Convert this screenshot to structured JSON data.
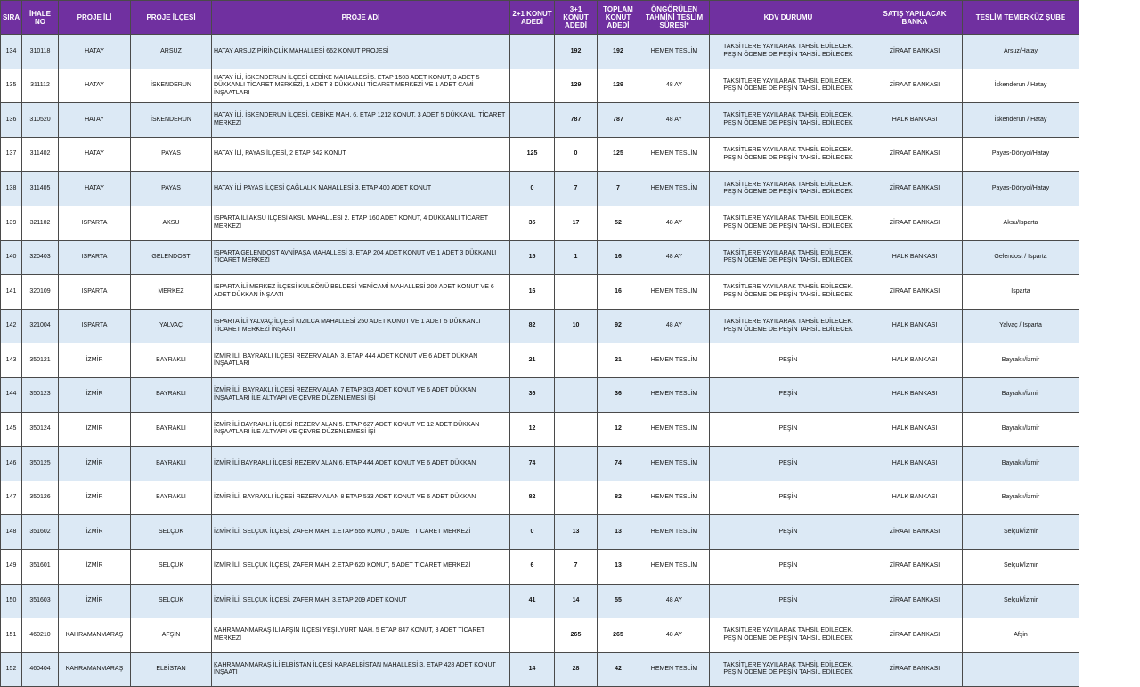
{
  "colors": {
    "header_bg": "#7030a0",
    "header_text": "#ffffff",
    "alt_row_bg": "#dce9f5",
    "border": "#4a4a4a"
  },
  "headers": {
    "sira": "SIRA",
    "ihale_no": "İHALE NO",
    "il": "PROJE İLİ",
    "ilce": "PROJE İLÇESİ",
    "adi": "PROJE ADI",
    "k21": "2+1 KONUT ADEDİ",
    "k31": "3+1 KONUT ADEDİ",
    "toplam": "TOPLAM KONUT ADEDİ",
    "sure": "ÖNGÖRÜLEN TAHMİNİ TESLİM SÜRESİ*",
    "kdv": "KDV DURUMU",
    "banka": "SATIŞ YAPILACAK BANKA",
    "sube": "TESLİM TEMERKÜZ ŞUBE"
  },
  "rows": [
    {
      "sira": "134",
      "ihale": "310118",
      "il": "HATAY",
      "ilce": "ARSUZ",
      "adi": "HATAY ARSUZ PİRİNÇLİK MAHALLESİ  662 KONUT PROJESİ",
      "k21": "",
      "k31": "192",
      "toplam": "192",
      "sure": "HEMEN TESLİM",
      "kdv": "TAKSİTLERE YAYILARAK TAHSİL EDİLECEK.\nPEŞİN ÖDEME DE PEŞİN TAHSİL EDİLECEK",
      "banka": "ZİRAAT BANKASI",
      "sube": "Arsuz/Hatay"
    },
    {
      "sira": "135",
      "ihale": "311112",
      "il": "HATAY",
      "ilce": "İSKENDERUN",
      "adi": "HATAY İLİ, İSKENDERUN İLÇESİ CEBİKE MAHALLESİ 5. ETAP 1503 ADET KONUT, 3 ADET 5 DÜKKANLI TİCARET MERKEZİ, 1 ADET 3 DÜKKANLI TİCARET MERKEZİ VE 1 ADET CAMİ İNŞAATLARI",
      "k21": "",
      "k31": "129",
      "toplam": "129",
      "sure": "48 AY",
      "kdv": "TAKSİTLERE YAYILARAK TAHSİL EDİLECEK.\nPEŞİN ÖDEME DE PEŞİN TAHSİL EDİLECEK",
      "banka": "ZİRAAT BANKASI",
      "sube": "İskenderun / Hatay"
    },
    {
      "sira": "136",
      "ihale": "310520",
      "il": "HATAY",
      "ilce": "İSKENDERUN",
      "adi": "HATAY İLİ, İSKENDERUN İLÇESİ, CEBİKE MAH. 6. ETAP 1212  KONUT, 3 ADET 5 DÜKKANLI TİCARET MERKEZİ",
      "k21": "",
      "k31": "787",
      "toplam": "787",
      "sure": "48 AY",
      "kdv": "TAKSİTLERE YAYILARAK TAHSİL EDİLECEK.\nPEŞİN ÖDEME DE PEŞİN TAHSİL EDİLECEK",
      "banka": "HALK BANKASI",
      "sube": "İskenderun / Hatay"
    },
    {
      "sira": "137",
      "ihale": "311402",
      "il": "HATAY",
      "ilce": "PAYAS",
      "adi": "HATAY İLİ, PAYAS İLÇESİ, 2 ETAP 542 KONUT",
      "k21": "125",
      "k31": "0",
      "toplam": "125",
      "sure": "HEMEN TESLİM",
      "kdv": "TAKSİTLERE YAYILARAK TAHSİL EDİLECEK.\nPEŞİN ÖDEME DE PEŞİN TAHSİL EDİLECEK",
      "banka": "ZİRAAT BANKASI",
      "sube": "Payas-Dörtyol/Hatay"
    },
    {
      "sira": "138",
      "ihale": "311405",
      "il": "HATAY",
      "ilce": "PAYAS",
      "adi": "HATAY İLİ PAYAS İLÇESİ ÇAĞLALIK MAHALLESİ 3. ETAP 400 ADET KONUT",
      "k21": "0",
      "k31": "7",
      "toplam": "7",
      "sure": "HEMEN TESLİM",
      "kdv": "TAKSİTLERE YAYILARAK TAHSİL EDİLECEK.\nPEŞİN ÖDEME DE PEŞİN TAHSİL EDİLECEK",
      "banka": "ZİRAAT BANKASI",
      "sube": "Payas-Dörtyol/Hatay"
    },
    {
      "sira": "139",
      "ihale": "321102",
      "il": "ISPARTA",
      "ilce": "AKSU",
      "adi": "ISPARTA İLİ AKSU İLÇESİ AKSU MAHALLESİ 2. ETAP 160 ADET KONUT, 4 DÜKKANLI TİCARET MERKEZİ",
      "k21": "35",
      "k31": "17",
      "toplam": "52",
      "sure": "48 AY",
      "kdv": "TAKSİTLERE YAYILARAK TAHSİL EDİLECEK.\nPEŞİN ÖDEME DE PEŞİN TAHSİL EDİLECEK",
      "banka": "ZİRAAT BANKASI",
      "sube": "Aksu/Isparta"
    },
    {
      "sira": "140",
      "ihale": "320403",
      "il": "ISPARTA",
      "ilce": "GELENDOST",
      "adi": "ISPARTA GELENDOST AVNİPAŞA MAHALLESİ 3. ETAP 204 ADET KONUT VE 1 ADET 3 DÜKKANLI TİCARET MERKEZİ",
      "k21": "15",
      "k31": "1",
      "toplam": "16",
      "sure": "48 AY",
      "kdv": "TAKSİTLERE YAYILARAK TAHSİL EDİLECEK.\nPEŞİN ÖDEME DE PEŞİN TAHSİL EDİLECEK",
      "banka": "HALK BANKASI",
      "sube": "Gelendost / Isparta"
    },
    {
      "sira": "141",
      "ihale": "320109",
      "il": "ISPARTA",
      "ilce": "MERKEZ",
      "adi": "ISPARTA İLİ MERKEZ İLÇESİ KULEÖNÜ BELDESİ YENİCAMİ MAHALLESİ 200 ADET KONUT VE 6 ADET DÜKKAN İNŞAATI",
      "k21": "16",
      "k31": "",
      "toplam": "16",
      "sure": "HEMEN TESLİM",
      "kdv": "TAKSİTLERE YAYILARAK TAHSİL EDİLECEK.\nPEŞİN ÖDEME DE PEŞİN TAHSİL EDİLECEK",
      "banka": "ZİRAAT BANKASI",
      "sube": "Isparta"
    },
    {
      "sira": "142",
      "ihale": "321004",
      "il": "ISPARTA",
      "ilce": "YALVAÇ",
      "adi": "ISPARTA İLİ YALVAÇ İLÇESİ KIZILCA MAHALLESİ 250 ADET KONUT VE 1 ADET 5 DÜKKANLI TİCARET MERKEZİ İNŞAATI",
      "k21": "82",
      "k31": "10",
      "toplam": "92",
      "sure": "48 AY",
      "kdv": "TAKSİTLERE YAYILARAK TAHSİL EDİLECEK.\nPEŞİN ÖDEME DE PEŞİN TAHSİL EDİLECEK",
      "banka": "HALK BANKASI",
      "sube": "Yalvaç / Isparta"
    },
    {
      "sira": "143",
      "ihale": "350121",
      "il": "İZMİR",
      "ilce": "BAYRAKLI",
      "adi": "İZMİR İLİ, BAYRAKLI İLÇESİ REZERV ALAN 3. ETAP 444 ADET KONUT VE 6 ADET DÜKKAN İNŞAATLARI",
      "k21": "21",
      "k31": "",
      "toplam": "21",
      "sure": "HEMEN TESLİM",
      "kdv": "PEŞİN",
      "banka": "HALK BANKASI",
      "sube": "Bayraklı/İzmir"
    },
    {
      "sira": "144",
      "ihale": "350123",
      "il": "İZMİR",
      "ilce": "BAYRAKLI",
      "adi": "İZMİR İLİ, BAYRAKLI İLÇESİ REZERV ALAN 7 ETAP 303 ADET KONUT VE 6 ADET DÜKKAN İNŞAATLARI İLE ALTYAPI VE ÇEVRE DÜZENLEMESİ İŞİ",
      "k21": "36",
      "k31": "",
      "toplam": "36",
      "sure": "HEMEN TESLİM",
      "kdv": "PEŞİN",
      "banka": "HALK BANKASI",
      "sube": "Bayraklı/İzmir"
    },
    {
      "sira": "145",
      "ihale": "350124",
      "il": "İZMİR",
      "ilce": "BAYRAKLI",
      "adi": "İZMİR İLİ BAYRAKLI İLÇESİ REZERV ALAN 5. ETAP 627 ADET KONUT VE 12 ADET DÜKKAN İNŞAATLARI İLE ALTYAPI VE ÇEVRE DÜZENLEMESİ İŞİ",
      "k21": "12",
      "k31": "",
      "toplam": "12",
      "sure": "HEMEN TESLİM",
      "kdv": "PEŞİN",
      "banka": "HALK BANKASI",
      "sube": "Bayraklı/İzmir"
    },
    {
      "sira": "146",
      "ihale": "350125",
      "il": "İZMİR",
      "ilce": "BAYRAKLI",
      "adi": "İZMİR İLİ BAYRAKLI İLÇESİ REZERV ALAN 6. ETAP 444 ADET KONUT VE 6 ADET DÜKKAN",
      "k21": "74",
      "k31": "",
      "toplam": "74",
      "sure": "HEMEN TESLİM",
      "kdv": "PEŞİN",
      "banka": "HALK BANKASI",
      "sube": "Bayraklı/İzmir"
    },
    {
      "sira": "147",
      "ihale": "350126",
      "il": "İZMİR",
      "ilce": "BAYRAKLI",
      "adi": "İZMİR İLİ, BAYRAKLI İLÇESİ REZERV ALAN 8 ETAP 533 ADET KONUT VE 6 ADET DÜKKAN",
      "k21": "82",
      "k31": "",
      "toplam": "82",
      "sure": "HEMEN TESLİM",
      "kdv": "PEŞİN",
      "banka": "HALK BANKASI",
      "sube": "Bayraklı/İzmir"
    },
    {
      "sira": "148",
      "ihale": "351602",
      "il": "İZMİR",
      "ilce": "SELÇUK",
      "adi": "İZMİR İLİ, SELÇUK İLÇESİ, ZAFER MAH. 1.ETAP 555  KONUT, 5 ADET TİCARET MERKEZİ",
      "k21": "0",
      "k31": "13",
      "toplam": "13",
      "sure": "HEMEN TESLİM",
      "kdv": "PEŞİN",
      "banka": "ZİRAAT BANKASI",
      "sube": "Selçuk/İzmir"
    },
    {
      "sira": "149",
      "ihale": "351601",
      "il": "İZMİR",
      "ilce": "SELÇUK",
      "adi": "İZMİR İLİ, SELÇUK İLÇESİ, ZAFER MAH. 2.ETAP 620 KONUT, 5 ADET TİCARET MERKEZİ",
      "k21": "6",
      "k31": "7",
      "toplam": "13",
      "sure": "HEMEN TESLİM",
      "kdv": "PEŞİN",
      "banka": "ZİRAAT BANKASI",
      "sube": "Selçuk/İzmir"
    },
    {
      "sira": "150",
      "ihale": "351603",
      "il": "İZMİR",
      "ilce": "SELÇUK",
      "adi": "İZMİR İLİ, SELÇUK İLÇESİ, ZAFER MAH.  3.ETAP 209 ADET KONUT",
      "k21": "41",
      "k31": "14",
      "toplam": "55",
      "sure": "48 AY",
      "kdv": "PEŞİN",
      "banka": "ZİRAAT BANKASI",
      "sube": "Selçuk/İzmir"
    },
    {
      "sira": "151",
      "ihale": "460210",
      "il": "KAHRAMANMARAŞ",
      "ilce": "AFŞİN",
      "adi": "KAHRAMANMARAŞ İLİ AFŞİN İLÇESİ YEŞİLYURT MAH. 5 ETAP 847 KONUT, 3 ADET  TİCARET MERKEZİ",
      "k21": "",
      "k31": "265",
      "toplam": "265",
      "sure": "48 AY",
      "kdv": "TAKSİTLERE YAYILARAK TAHSİL EDİLECEK.\nPEŞİN ÖDEME DE PEŞİN TAHSİL EDİLECEK",
      "banka": "ZİRAAT BANKASI",
      "sube": "Afşin"
    },
    {
      "sira": "152",
      "ihale": "460404",
      "il": "KAHRAMANMARAŞ",
      "ilce": "ELBİSTAN",
      "adi": "KAHRAMANMARAŞ İLİ ELBİSTAN İLÇESİ KARAELBİSTAN MAHALLESİ 3. ETAP 428 ADET KONUT İNŞAATI",
      "k21": "14",
      "k31": "28",
      "toplam": "42",
      "sure": "HEMEN TESLİM",
      "kdv": "TAKSİTLERE YAYILARAK TAHSİL EDİLECEK.\nPEŞİN ÖDEME DE PEŞİN TAHSİL EDİLECEK",
      "banka": "ZİRAAT BANKASI",
      "sube": ""
    }
  ]
}
